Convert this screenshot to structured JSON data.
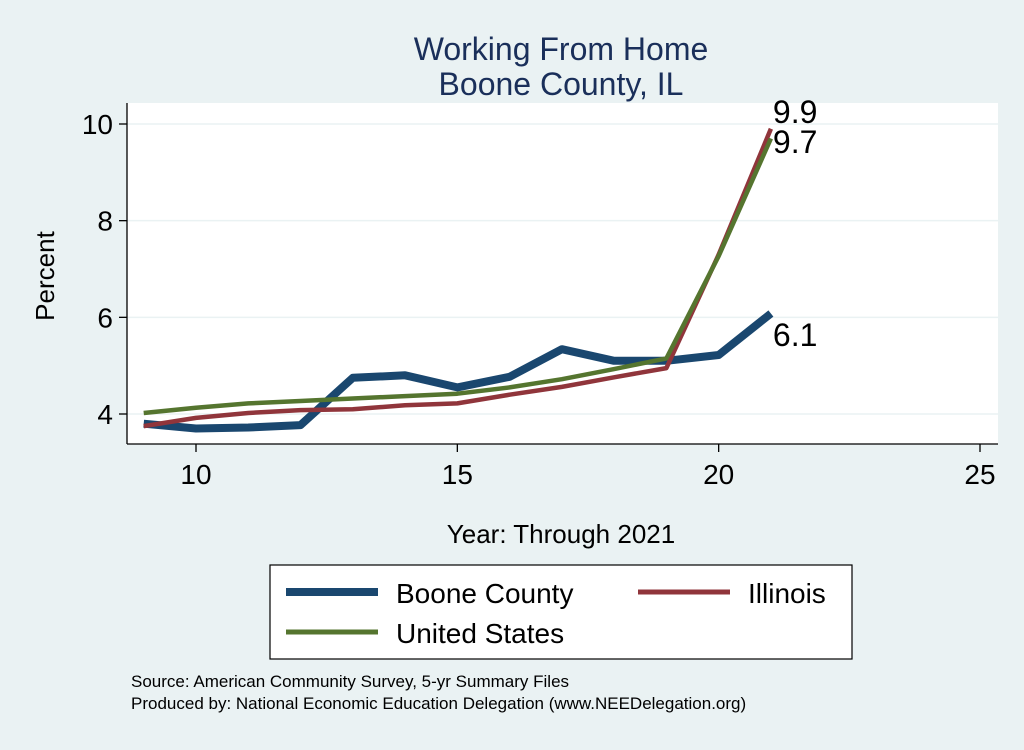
{
  "chart_data": {
    "type": "line",
    "title": "Working From Home",
    "subtitle": "Boone County, IL",
    "xlabel": "Year: Through 2021",
    "ylabel": "Percent",
    "xlim": [
      9,
      25
    ],
    "ylim": [
      3.4,
      10.3
    ],
    "xticks": [
      10,
      15,
      20,
      25
    ],
    "yticks": [
      4,
      6,
      8,
      10
    ],
    "grid": true,
    "legend_placement": "bottom",
    "x": [
      9,
      10,
      11,
      12,
      13,
      14,
      15,
      16,
      17,
      18,
      19,
      20,
      21
    ],
    "series": [
      {
        "name": "Boone County",
        "color": "#1a476f",
        "values": [
          3.8,
          3.7,
          3.72,
          3.77,
          4.75,
          4.8,
          4.55,
          4.77,
          5.34,
          5.1,
          5.1,
          5.22,
          6.08
        ],
        "end_label": "6.1"
      },
      {
        "name": "Illinois",
        "color": "#90353b",
        "values": [
          3.75,
          3.92,
          4.02,
          4.08,
          4.1,
          4.18,
          4.22,
          4.4,
          4.56,
          4.76,
          4.95,
          7.3,
          9.9
        ],
        "end_label": "9.9"
      },
      {
        "name": "United States",
        "color": "#55752f",
        "values": [
          4.02,
          4.13,
          4.22,
          4.27,
          4.32,
          4.37,
          4.42,
          4.55,
          4.72,
          4.93,
          5.15,
          7.27,
          9.7
        ],
        "end_label": "9.7"
      }
    ],
    "notes": [
      "Source: American Community Survey, 5-yr Summary Files",
      "Produced by: National Economic Education Delegation (www.NEEDelegation.org)"
    ]
  }
}
